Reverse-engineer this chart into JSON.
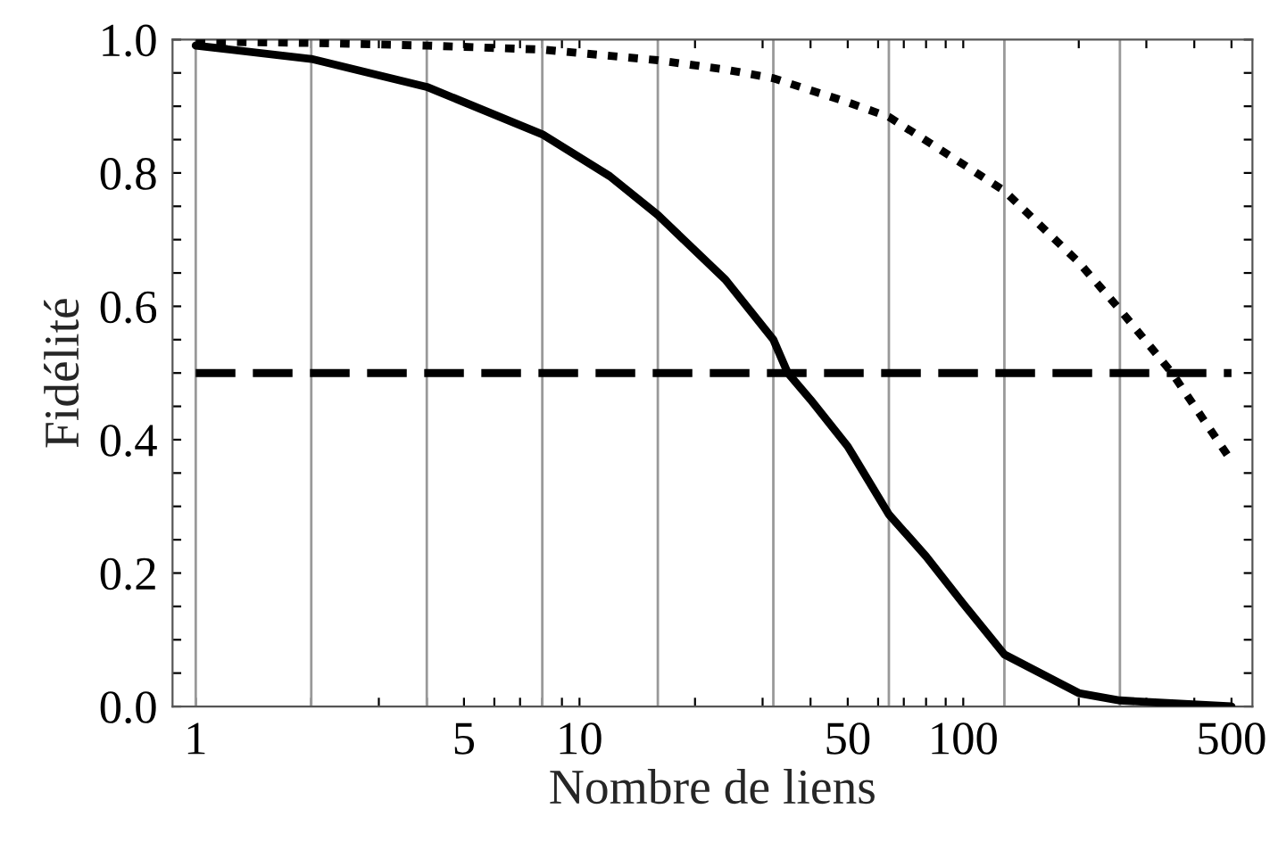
{
  "chart_data": {
    "type": "line",
    "xlabel": "Nombre de liens",
    "ylabel": "Fidélité",
    "log": "x",
    "xlim": [
      0.87,
      567
    ],
    "ylim": [
      0,
      1.0
    ],
    "xticks": [
      1,
      {
        "value": 2,
        "label": null
      },
      {
        "value": 3,
        "label": null
      },
      {
        "value": 4,
        "label": null
      },
      5,
      {
        "value": 6,
        "label": null
      },
      {
        "value": 7,
        "label": null
      },
      {
        "value": 8,
        "label": null
      },
      {
        "value": 9,
        "label": null
      },
      10,
      {
        "value": 20,
        "label": null
      },
      {
        "value": 30,
        "label": null
      },
      {
        "value": 40,
        "label": null
      },
      50,
      {
        "value": 60,
        "label": null
      },
      {
        "value": 70,
        "label": null
      },
      {
        "value": 80,
        "label": null
      },
      {
        "value": 90,
        "label": null
      },
      100,
      {
        "value": 200,
        "label": null
      },
      {
        "value": 300,
        "label": null
      },
      {
        "value": 400,
        "label": null
      },
      500
    ],
    "yticks": [
      {
        "value": 0,
        "label": "0.0"
      },
      {
        "value": 0.05,
        "label": null
      },
      {
        "value": 0.1,
        "label": null
      },
      {
        "value": 0.15,
        "label": null
      },
      0.2,
      {
        "value": 0.25,
        "label": null
      },
      {
        "value": 0.3,
        "label": null
      },
      {
        "value": 0.35,
        "label": null
      },
      0.4,
      {
        "value": 0.45,
        "label": null
      },
      {
        "value": 0.5,
        "label": null
      },
      {
        "value": 0.55,
        "label": null
      },
      0.6,
      {
        "value": 0.65,
        "label": null
      },
      {
        "value": 0.7,
        "label": null
      },
      {
        "value": 0.75,
        "label": null
      },
      0.8,
      {
        "value": 0.85,
        "label": null
      },
      {
        "value": 0.9,
        "label": null
      },
      {
        "value": 0.95,
        "label": null
      },
      {
        "value": 1.0,
        "label": "1.0"
      }
    ],
    "ref_lines": [
      {
        "axis": "x",
        "value": 1,
        "color": "#999999"
      },
      {
        "axis": "x",
        "value": 2,
        "color": "#999999"
      },
      {
        "axis": "x",
        "value": 4,
        "color": "#999999"
      },
      {
        "axis": "x",
        "value": 8,
        "color": "#999999"
      },
      {
        "axis": "x",
        "value": 16,
        "color": "#999999"
      },
      {
        "axis": "x",
        "value": 32,
        "color": "#999999"
      },
      {
        "axis": "x",
        "value": 64,
        "color": "#999999"
      },
      {
        "axis": "x",
        "value": 128,
        "color": "#999999"
      },
      {
        "axis": "x",
        "value": 256,
        "color": "#999999"
      }
    ],
    "series": [
      {
        "color": "#000000",
        "line_style": "solid",
        "x": [
          1,
          2,
          4,
          8,
          12,
          16,
          24,
          32,
          34.9,
          40,
          50,
          64,
          80,
          100,
          128,
          200,
          256,
          500
        ],
        "values": [
          0.991,
          0.971,
          0.929,
          0.858,
          0.795,
          0.737,
          0.64,
          0.55,
          0.5,
          0.46,
          0.39,
          0.288,
          0.225,
          0.154,
          0.078,
          0.02,
          0.009,
          0.0
        ]
      },
      {
        "color": "#000000",
        "line_style": "dotted",
        "x": [
          1,
          2,
          4,
          8,
          16,
          24,
          32,
          50,
          64,
          100,
          128,
          200,
          256,
          350,
          500
        ],
        "values": [
          0.997,
          0.995,
          0.991,
          0.985,
          0.969,
          0.955,
          0.942,
          0.906,
          0.884,
          0.813,
          0.773,
          0.666,
          0.595,
          0.5,
          0.368
        ]
      },
      {
        "color": "#000000",
        "line_style": "dashed",
        "x": [
          1,
          500
        ],
        "values": [
          0.5,
          0.5
        ]
      }
    ]
  }
}
